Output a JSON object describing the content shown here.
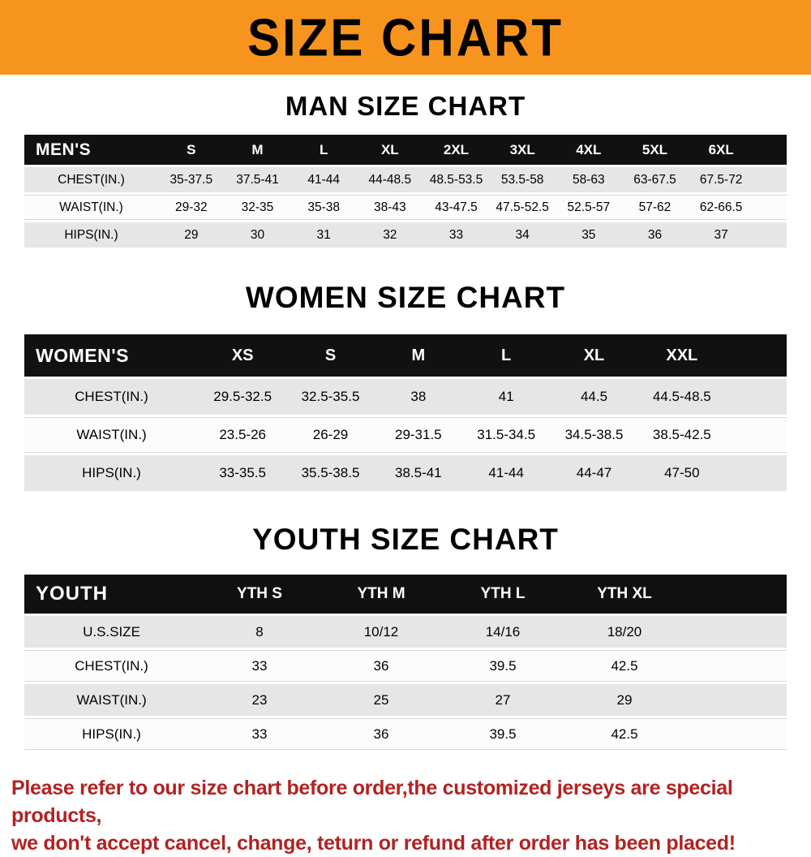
{
  "banner": {
    "title": "SIZE CHART",
    "bg_color": "#f7941e",
    "text_color": "#000000"
  },
  "chart_data": [
    {
      "type": "table",
      "title": "MAN SIZE CHART",
      "header": [
        "MEN'S",
        "S",
        "M",
        "L",
        "XL",
        "2XL",
        "3XL",
        "4XL",
        "5XL",
        "6XL"
      ],
      "rows": [
        [
          "CHEST(IN.)",
          "35-37.5",
          "37.5-41",
          "41-44",
          "44-48.5",
          "48.5-53.5",
          "53.5-58",
          "58-63",
          "63-67.5",
          "67.5-72"
        ],
        [
          "WAIST(IN.)",
          "29-32",
          "32-35",
          "35-38",
          "38-43",
          "43-47.5",
          "47.5-52.5",
          "52.5-57",
          "57-62",
          "62-66.5"
        ],
        [
          "HIPS(IN.)",
          "29",
          "30",
          "31",
          "32",
          "33",
          "34",
          "35",
          "36",
          "37"
        ]
      ]
    },
    {
      "type": "table",
      "title": "WOMEN SIZE CHART",
      "header": [
        "WOMEN'S",
        "XS",
        "S",
        "M",
        "L",
        "XL",
        "XXL"
      ],
      "rows": [
        [
          "CHEST(IN.)",
          "29.5-32.5",
          "32.5-35.5",
          "38",
          "41",
          "44.5",
          "44.5-48.5"
        ],
        [
          "WAIST(IN.)",
          "23.5-26",
          "26-29",
          "29-31.5",
          "31.5-34.5",
          "34.5-38.5",
          "38.5-42.5"
        ],
        [
          "HIPS(IN.)",
          "33-35.5",
          "35.5-38.5",
          "38.5-41",
          "41-44",
          "44-47",
          "47-50"
        ]
      ]
    },
    {
      "type": "table",
      "title": "YOUTH SIZE CHART",
      "header": [
        "YOUTH",
        "YTH S",
        "YTH M",
        "YTH L",
        "YTH XL"
      ],
      "rows": [
        [
          "U.S.SIZE",
          "8",
          "10/12",
          "14/16",
          "18/20"
        ],
        [
          "CHEST(IN.)",
          "33",
          "36",
          "39.5",
          "42.5"
        ],
        [
          "WAIST(IN.)",
          "23",
          "25",
          "27",
          "29"
        ],
        [
          "HIPS(IN.)",
          "33",
          "36",
          "39.5",
          "42.5"
        ]
      ]
    }
  ],
  "footer": {
    "lines": [
      "Please refer to our size chart before order,the customized jerseys are special products,",
      "we don't accept cancel, change, teturn or refund after order has been placed!"
    ],
    "color": "#b22222"
  },
  "colors": {
    "banner_bg": "#f7941e",
    "table_header_bg": "#111111",
    "row_alt_bg": "#e6e6e6",
    "footer_text": "#b22222"
  }
}
